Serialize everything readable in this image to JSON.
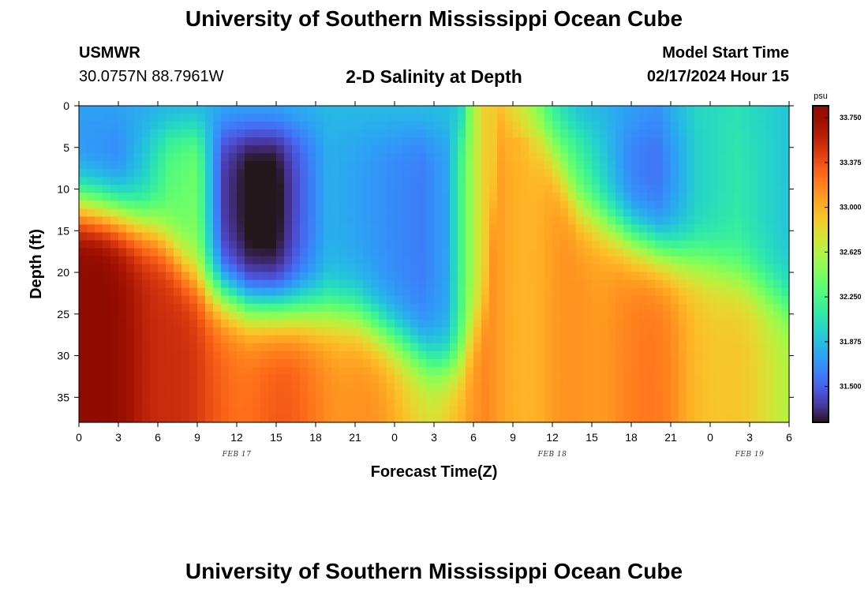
{
  "header": {
    "title": "University of Southern Mississippi Ocean Cube",
    "station": "USMWR",
    "coordinates": "30.0757N  88.7961W",
    "chart_title": "2-D Salinity at Depth",
    "model_start_label": "Model Start Time",
    "model_start_value": "02/17/2024 Hour 15"
  },
  "footer": {
    "title": "University of Southern Mississippi Ocean Cube"
  },
  "chart_data": {
    "type": "heatmap",
    "title": "2-D Salinity at Depth",
    "xlabel": "Forecast Time(Z)",
    "ylabel": "Depth (ft)",
    "x_hours_elapsed_range": [
      0,
      54
    ],
    "x_tick_labels": [
      "0",
      "3",
      "6",
      "9",
      "12",
      "15",
      "18",
      "21",
      "0",
      "3",
      "6",
      "9",
      "12",
      "15",
      "18",
      "21",
      "0",
      "3",
      "6"
    ],
    "date_labels": [
      {
        "text": "FEB 17",
        "at_tick_index": 4
      },
      {
        "text": "FEB 18",
        "at_tick_index": 12
      },
      {
        "text": "FEB 19",
        "at_tick_index": 17
      }
    ],
    "y_range": [
      0,
      38
    ],
    "y_ticks": [
      0,
      5,
      10,
      15,
      20,
      25,
      30,
      35
    ],
    "y_inverted": true,
    "colorbar": {
      "unit": "psu",
      "min": 31.2,
      "max": 33.85,
      "tick_values": [
        31.5,
        31.875,
        32.25,
        32.625,
        33.0,
        33.375,
        33.75
      ],
      "tick_labels": [
        "31.500",
        "31.875",
        "32.250",
        "32.625",
        "33.000",
        "33.375",
        "33.750"
      ],
      "colormap": "turbo"
    }
  }
}
